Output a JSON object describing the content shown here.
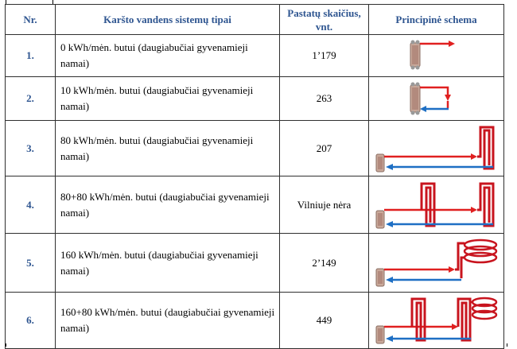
{
  "table": {
    "headers": {
      "nr": "Nr.",
      "type": "Karšto vandens sistemų tipai",
      "count": "Pastatų skaičius, vnt.",
      "schema": "Principinė schema"
    },
    "rows": [
      {
        "nr": "1.",
        "type": "0 kWh/mėn. butui (daugiabučiai gyvenamieji namai)",
        "count": "1’179",
        "schema": "exchanger-supply-only"
      },
      {
        "nr": "2.",
        "type": "10 kWh/mėn. butui (daugiabučiai gyvenamieji namai)",
        "count": "263",
        "schema": "exchanger-short-loop"
      },
      {
        "nr": "3.",
        "type": "80 kWh/mėn. butui (daugiabučiai gyvenamieji namai)",
        "count": "207",
        "schema": "exchanger-one-riser-loop"
      },
      {
        "nr": "4.",
        "type": "80+80 kWh/mėn. butui (daugiabučiai gyvenamieji namai)",
        "count": "Vilniuje nėra",
        "schema": "exchanger-two-riser-loop"
      },
      {
        "nr": "5.",
        "type": "160 kWh/mėn. butui (daugiabučiai gyvenamieji namai)",
        "count": "2’149",
        "schema": "exchanger-coil-loop"
      },
      {
        "nr": "6.",
        "type": "160+80 kWh/mėn. butui (daugiabučiai gyvenamieji namai)",
        "count": "449",
        "schema": "exchanger-two-riser-coil-loop"
      }
    ]
  },
  "colors": {
    "header_text": "#2e5590",
    "supply_pipe": "#e02020",
    "return_pipe": "#1e6fc4",
    "riser_pipe": "#c8141e"
  }
}
